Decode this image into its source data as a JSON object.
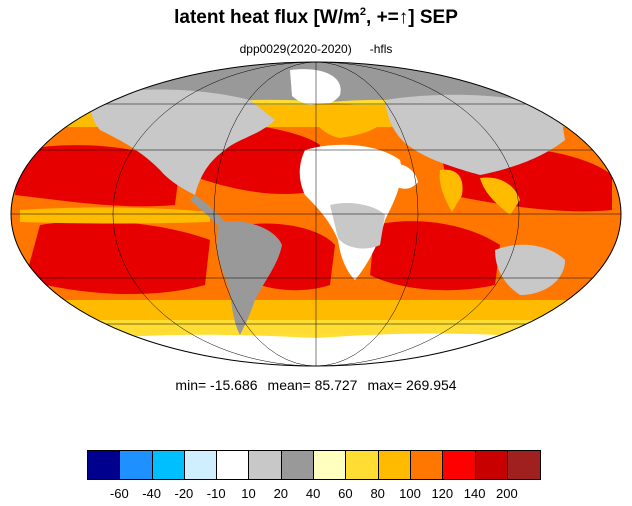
{
  "title": {
    "prefix": "latent heat flux [W/m",
    "superscript": "2",
    "middle": ", +=",
    "arrow": "↑",
    "suffix": "]  SEP"
  },
  "subtitle": {
    "run": "dpp0029(2020-2020)",
    "variable": "-hfls"
  },
  "stats": {
    "min": "min= -15.686",
    "mean": "mean=  85.727",
    "max": "max= 269.954"
  },
  "colorbar": {
    "colors": [
      "#00008f",
      "#1e90ff",
      "#00bfff",
      "#cfefff",
      "#ffffff",
      "#c8c8c8",
      "#999999",
      "#ffffc0",
      "#ffdd33",
      "#ffbb00",
      "#ff7700",
      "#ff0000",
      "#c80000",
      "#a02020"
    ],
    "labels": [
      "-60",
      "-40",
      "-20",
      "-10",
      "10",
      "20",
      "40",
      "60",
      "80",
      "100",
      "120",
      "140",
      "200"
    ]
  },
  "map": {
    "projection": "mollweide",
    "graticule": true,
    "colors": {
      "ocean_high": "#e60000",
      "ocean_mid": "#ff7700",
      "ocean_low": "#ffbb00",
      "ocean_lowest": "#ffdd33",
      "land_dry": "#ffffff",
      "land_grey": "#999999",
      "land_light": "#c8c8c8"
    }
  }
}
